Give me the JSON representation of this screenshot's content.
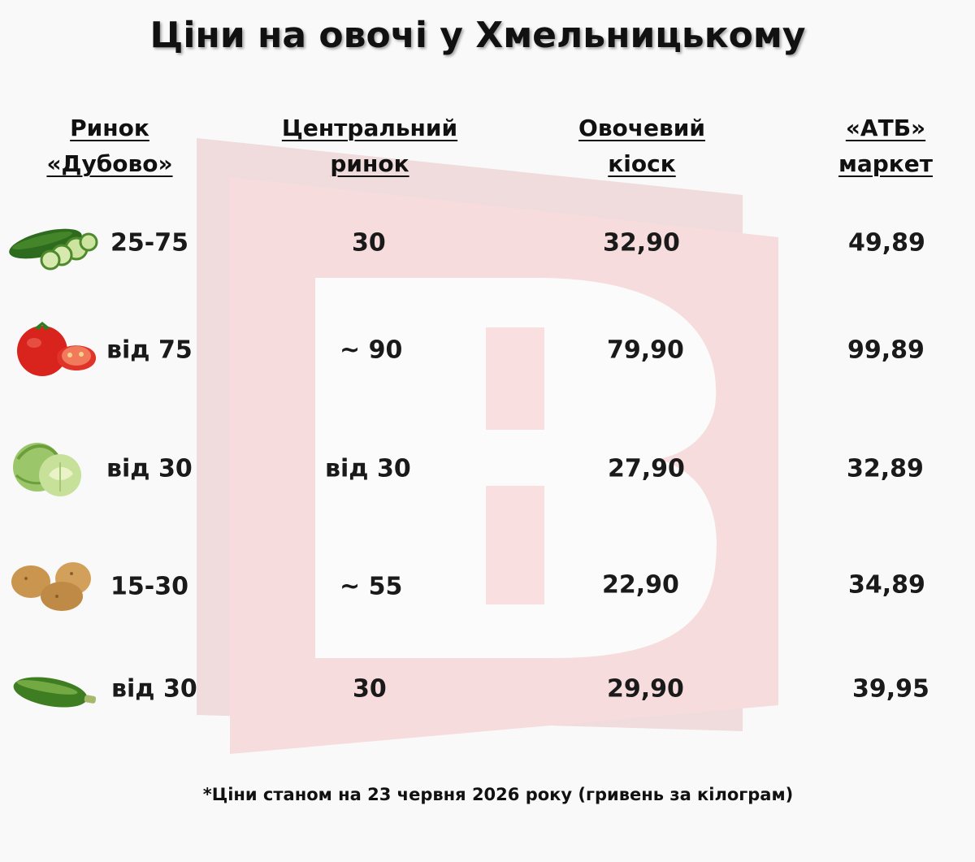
{
  "title": "Ціни на овочі у Хмельницькому",
  "headers": [
    {
      "line1": "Ринок",
      "line2": "«Дубово»"
    },
    {
      "line1": "Центральний",
      "line2": "ринок"
    },
    {
      "line1": "Овочевий",
      "line2": "кіоск"
    },
    {
      "line1": "«АТБ»",
      "line2": "маркет"
    }
  ],
  "rows": [
    {
      "icon": "cucumber-icon",
      "dubovo": "25-75",
      "central": "30",
      "kiosk": "32,90",
      "atb": "49,89"
    },
    {
      "icon": "tomato-icon",
      "dubovo": "від 75",
      "central": "~ 90",
      "kiosk": "79,90",
      "atb": "99,89"
    },
    {
      "icon": "cabbage-icon",
      "dubovo": "від 30",
      "central": "від 30",
      "kiosk": "27,90",
      "atb": "32,89"
    },
    {
      "icon": "potato-icon",
      "dubovo": "15-30",
      "central": "~ 55",
      "kiosk": "22,90",
      "atb": "34,89"
    },
    {
      "icon": "zucchini-icon",
      "dubovo": "від 30",
      "central": "30",
      "kiosk": "29,90",
      "atb": "39,95"
    }
  ],
  "footnote": "*Ціни станом на 23 червня 2026 року (гривень за кілограм)",
  "colors": {
    "watermark": "#f5d2d3",
    "text": "#1a1a1a",
    "background": "#f9f9f9"
  }
}
